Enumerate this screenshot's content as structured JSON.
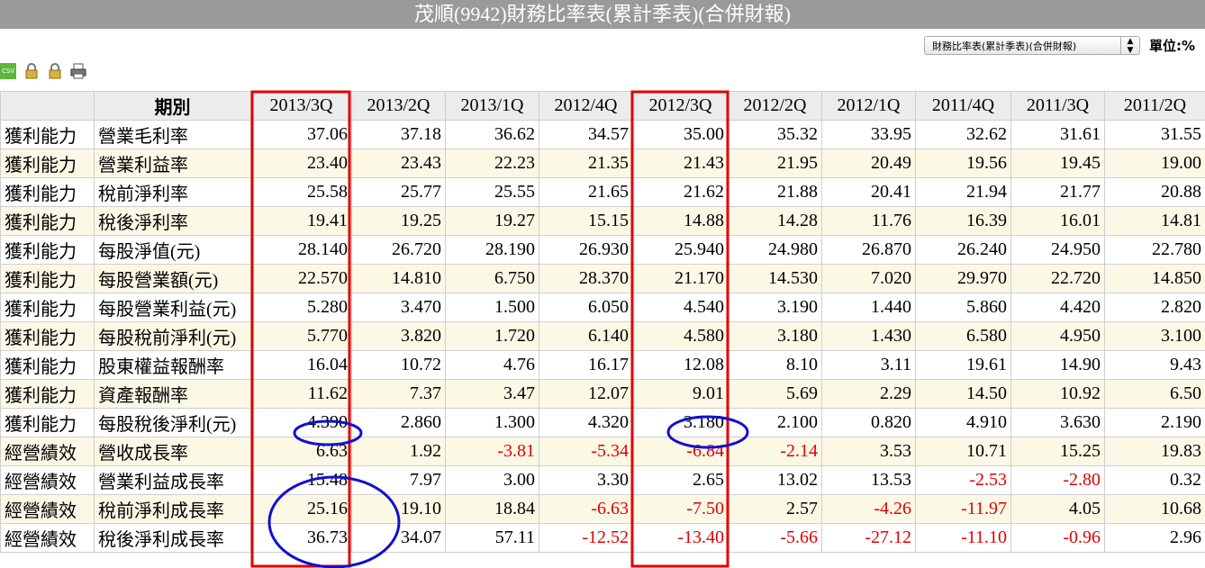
{
  "header": {
    "title": "茂順(9942)財務比率表(累計季表)(合併財報)"
  },
  "toolbar": {
    "select": "財務比率表(累計季表)(合併財報)",
    "unit": "單位:%",
    "csv": "CSV"
  },
  "table": {
    "columns": [
      "期別",
      "2013/3Q",
      "2013/2Q",
      "2013/1Q",
      "2012/4Q",
      "2012/3Q",
      "2012/2Q",
      "2012/1Q",
      "2011/4Q",
      "2011/3Q",
      "2011/2Q"
    ],
    "rows": [
      [
        "獲利能力",
        "營業毛利率",
        "37.06",
        "37.18",
        "36.62",
        "34.57",
        "35.00",
        "35.32",
        "33.95",
        "32.62",
        "31.61",
        "31.55"
      ],
      [
        "獲利能力",
        "營業利益率",
        "23.40",
        "23.43",
        "22.23",
        "21.35",
        "21.43",
        "21.95",
        "20.49",
        "19.56",
        "19.45",
        "19.00"
      ],
      [
        "獲利能力",
        "稅前淨利率",
        "25.58",
        "25.77",
        "25.55",
        "21.65",
        "21.62",
        "21.88",
        "20.41",
        "21.94",
        "21.77",
        "20.88"
      ],
      [
        "獲利能力",
        "稅後淨利率",
        "19.41",
        "19.25",
        "19.27",
        "15.15",
        "14.88",
        "14.28",
        "11.76",
        "16.39",
        "16.01",
        "14.81"
      ],
      [
        "獲利能力",
        "每股淨值(元)",
        "28.140",
        "26.720",
        "28.190",
        "26.930",
        "25.940",
        "24.980",
        "26.870",
        "26.240",
        "24.950",
        "22.780"
      ],
      [
        "獲利能力",
        "每股營業額(元)",
        "22.570",
        "14.810",
        "6.750",
        "28.370",
        "21.170",
        "14.530",
        "7.020",
        "29.970",
        "22.720",
        "14.850"
      ],
      [
        "獲利能力",
        "每股營業利益(元)",
        "5.280",
        "3.470",
        "1.500",
        "6.050",
        "4.540",
        "3.190",
        "1.440",
        "5.860",
        "4.420",
        "2.820"
      ],
      [
        "獲利能力",
        "每股稅前淨利(元)",
        "5.770",
        "3.820",
        "1.720",
        "6.140",
        "4.580",
        "3.180",
        "1.430",
        "6.580",
        "4.950",
        "3.100"
      ],
      [
        "獲利能力",
        "股東權益報酬率",
        "16.04",
        "10.72",
        "4.76",
        "16.17",
        "12.08",
        "8.10",
        "3.11",
        "19.61",
        "14.90",
        "9.43"
      ],
      [
        "獲利能力",
        "資產報酬率",
        "11.62",
        "7.37",
        "3.47",
        "12.07",
        "9.01",
        "5.69",
        "2.29",
        "14.50",
        "10.92",
        "6.50"
      ],
      [
        "獲利能力",
        "每股稅後淨利(元)",
        "4.390",
        "2.860",
        "1.300",
        "4.320",
        "3.180",
        "2.100",
        "0.820",
        "4.910",
        "3.630",
        "2.190"
      ],
      [
        "經營績效",
        "營收成長率",
        "6.63",
        "1.92",
        "-3.81",
        "-5.34",
        "-6.84",
        "-2.14",
        "3.53",
        "10.71",
        "15.25",
        "19.83"
      ],
      [
        "經營績效",
        "營業利益成長率",
        "15.48",
        "7.97",
        "3.00",
        "3.30",
        "2.65",
        "13.02",
        "13.53",
        "-2.53",
        "-2.80",
        "0.32"
      ],
      [
        "經營績效",
        "稅前淨利成長率",
        "25.16",
        "19.10",
        "18.84",
        "-6.63",
        "-7.50",
        "2.57",
        "-4.26",
        "-11.97",
        "4.05",
        "10.68"
      ],
      [
        "經營績效",
        "稅後淨利成長率",
        "36.73",
        "34.07",
        "57.11",
        "-12.52",
        "-13.40",
        "-5.66",
        "-27.12",
        "-11.10",
        "-0.96",
        "2.96"
      ]
    ]
  }
}
